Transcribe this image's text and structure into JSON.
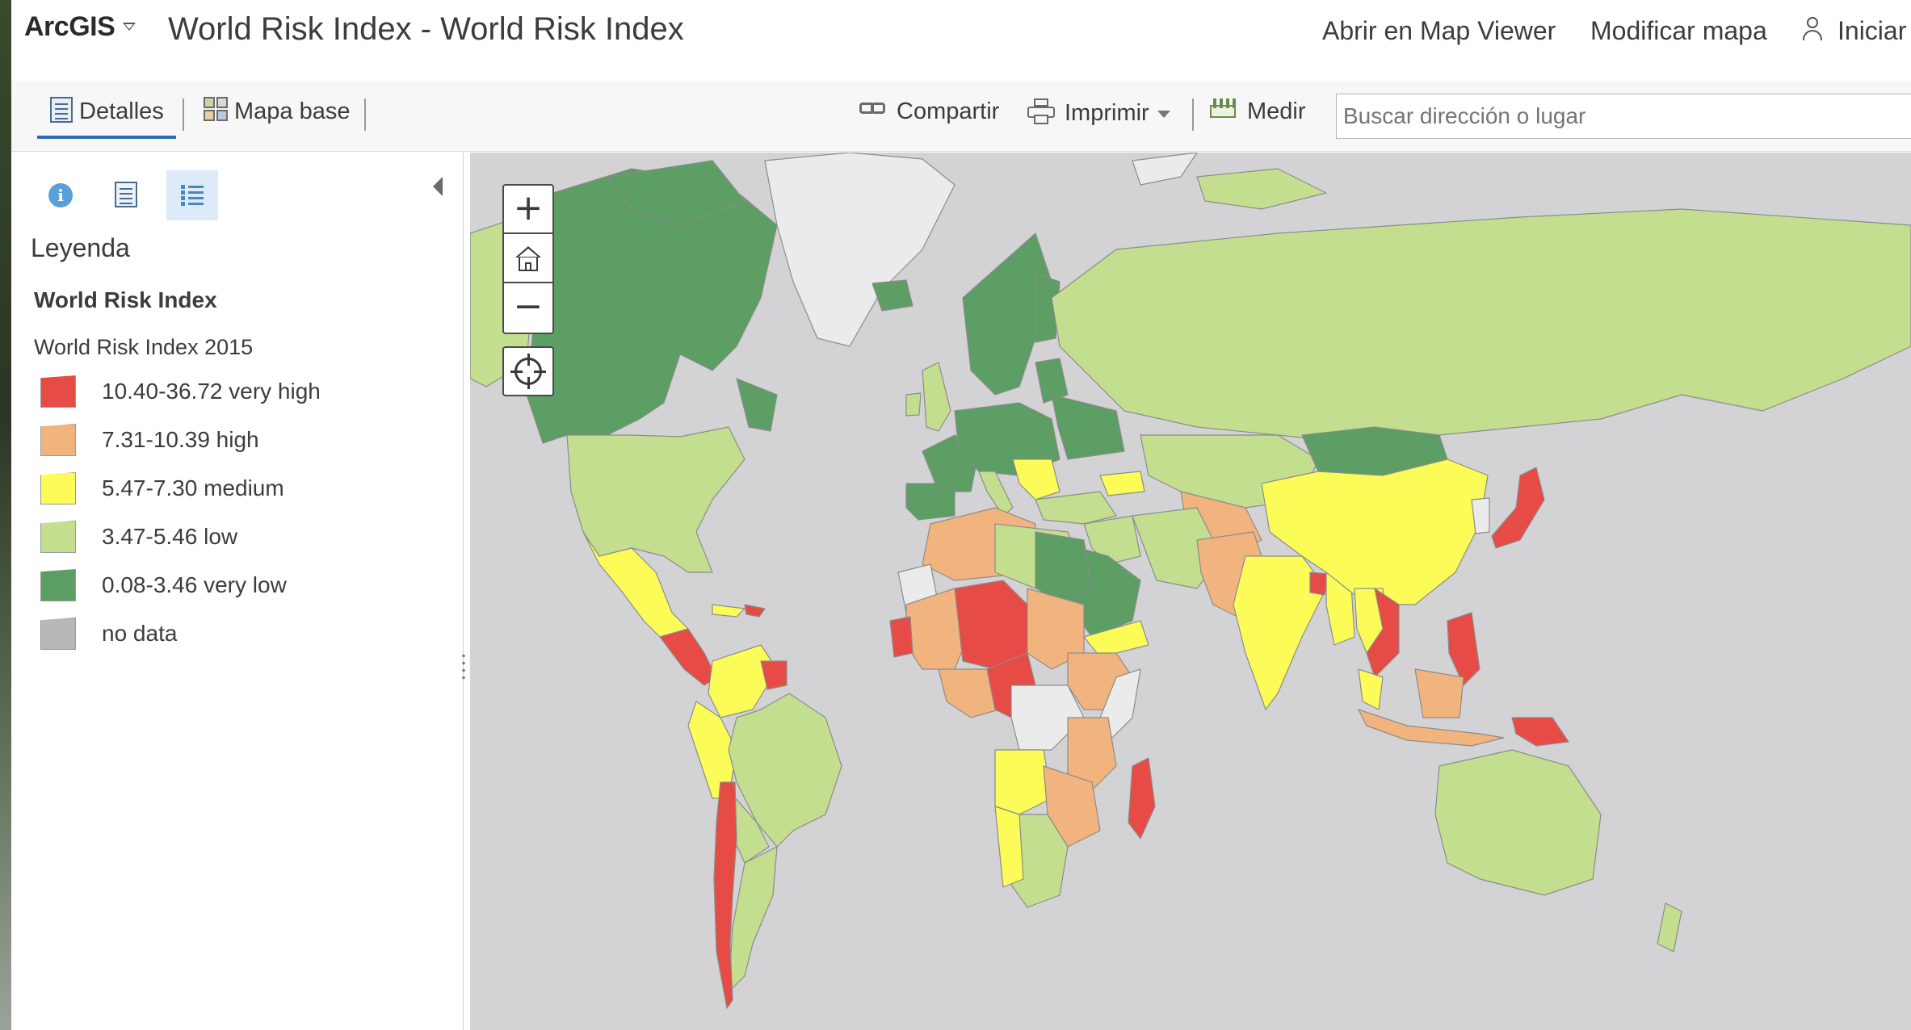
{
  "header": {
    "brand": "ArcGIS",
    "title": "World Risk Index - World Risk Index",
    "links": [
      "Abrir en Map Viewer",
      "Modificar mapa"
    ],
    "signin": "Iniciar"
  },
  "toolbar": {
    "tabs": [
      "Detalles",
      "Mapa base"
    ],
    "share": "Compartir",
    "print": "Imprimir",
    "measure": "Medir",
    "search_placeholder": "Buscar dirección o lugar"
  },
  "sidepanel": {
    "heading": "Leyenda",
    "layer_title": "World Risk Index",
    "sublayer_title": "World Risk Index 2015",
    "legend": [
      {
        "label": "10.40-36.72 very high",
        "color": "#e64b45"
      },
      {
        "label": "7.31-10.39 high",
        "color": "#f2b47e"
      },
      {
        "label": "5.47-7.30 medium",
        "color": "#fcfc58"
      },
      {
        "label": "3.47-5.46 low",
        "color": "#c3de8e"
      },
      {
        "label": "0.08-3.46 very low",
        "color": "#5c9e63"
      },
      {
        "label": "no data",
        "color": "#b8b8b8"
      }
    ]
  },
  "map": {
    "ocean_color": "#d3d3d6",
    "ice_color": "#ebebeb",
    "border_color": "#8c8c8c",
    "controls": {
      "zoom_in": "+",
      "zoom_out": "−"
    }
  }
}
